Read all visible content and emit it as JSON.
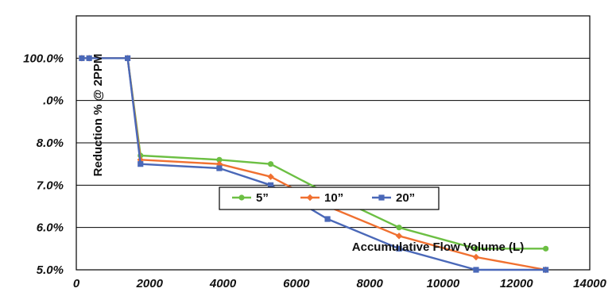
{
  "chart_data": {
    "type": "line",
    "title": "",
    "xlabel": "Accumulative Flow Volume (L)",
    "ylabel": "Reduction % @ 2PPM",
    "xlim": [
      0,
      14000
    ],
    "ylim": [
      0,
      6
    ],
    "x_ticks": [
      0,
      2000,
      4000,
      6000,
      8000,
      10000,
      12000,
      14000
    ],
    "x_tick_labels": [
      "0",
      "2000",
      "4000",
      "6000",
      "8000",
      "10000",
      "12000",
      "14000"
    ],
    "y_ticks": [
      0,
      1,
      2,
      3,
      4,
      5
    ],
    "y_tick_labels": [
      "5.0%",
      "6.0%",
      "7.0%",
      "8.0%",
      ".0%",
      "100.0%"
    ],
    "grid": "horizontal",
    "legend_position": "bottom-center",
    "series": [
      {
        "name": "5”",
        "color": "#6cbf43",
        "marker": "circle",
        "points": [
          [
            150,
            5.0
          ],
          [
            350,
            5.0
          ],
          [
            1400,
            5.0
          ],
          [
            1750,
            2.7
          ],
          [
            3900,
            2.6
          ],
          [
            5300,
            2.5
          ],
          [
            6850,
            1.8
          ],
          [
            8800,
            1.0
          ],
          [
            10900,
            0.5
          ],
          [
            12800,
            0.5
          ]
        ]
      },
      {
        "name": "10”",
        "color": "#f07030",
        "marker": "diamond",
        "points": [
          [
            150,
            5.0
          ],
          [
            350,
            5.0
          ],
          [
            1400,
            5.0
          ],
          [
            1750,
            2.6
          ],
          [
            3900,
            2.5
          ],
          [
            5300,
            2.2
          ],
          [
            6850,
            1.5
          ],
          [
            8800,
            0.8
          ],
          [
            10900,
            0.3
          ],
          [
            12800,
            0.0
          ]
        ]
      },
      {
        "name": "20”",
        "color": "#4a68b8",
        "marker": "square",
        "points": [
          [
            150,
            5.0
          ],
          [
            350,
            5.0
          ],
          [
            1400,
            5.0
          ],
          [
            1750,
            2.5
          ],
          [
            3900,
            2.4
          ],
          [
            5300,
            2.0
          ],
          [
            6850,
            1.2
          ],
          [
            8800,
            0.5
          ],
          [
            10900,
            0.0
          ],
          [
            12800,
            0.0
          ]
        ]
      }
    ]
  }
}
